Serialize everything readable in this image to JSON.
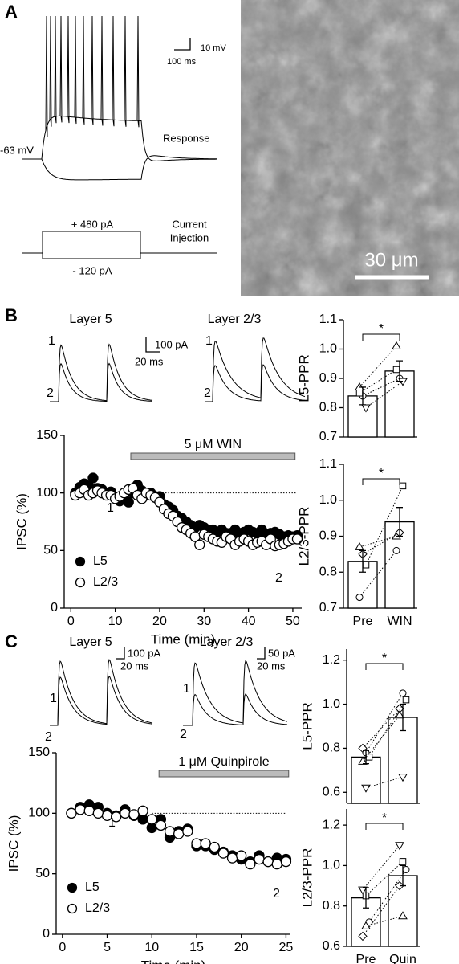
{
  "panels": [
    "A",
    "B",
    "C"
  ],
  "panel_a": {
    "scale_v": "10 mV",
    "scale_t": "100 ms",
    "rest": "-63 mV",
    "response": "Response",
    "step_up": "+ 480 pA",
    "step_down": "- 120 pA",
    "injection": [
      "Current",
      "Injection"
    ],
    "image_scale": "30 μm"
  },
  "panel_b": {
    "trace_titles": [
      "Layer 5",
      "Layer 2/3"
    ],
    "scale_i": "100 pA",
    "scale_t": "20 ms",
    "trace_labels": [
      "1",
      "2"
    ]
  },
  "panel_c": {
    "trace_titles": [
      "Layer 5",
      "Layer 2/3"
    ],
    "scale_i": [
      "100 pA",
      "50 pA"
    ],
    "scale_t": [
      "20 ms",
      "20 ms"
    ],
    "trace_labels": [
      "1",
      "2"
    ]
  },
  "chart_data": [
    {
      "type": "scatter",
      "ylabel": "IPSC (%)",
      "xlabel": "Time (min)",
      "xlim": [
        -1.5,
        52
      ],
      "xticks": [
        0,
        10,
        20,
        30,
        40,
        50
      ],
      "ylim": [
        0,
        150
      ],
      "yticks": [
        0,
        50,
        100,
        150
      ],
      "treatment": {
        "label": "5 μM WIN",
        "start": 13.5,
        "end": 50.5
      },
      "reference_line": {
        "value": 100,
        "start": 20,
        "end": 51
      },
      "annotations": [
        "1",
        "2"
      ],
      "x": [
        1,
        2,
        3,
        4,
        5,
        6,
        7,
        8,
        9,
        10,
        11,
        12,
        13,
        14,
        15,
        16,
        17,
        18,
        19,
        20,
        21,
        22,
        23,
        24,
        25,
        26,
        27,
        28,
        29,
        30,
        31,
        32,
        33,
        34,
        35,
        36,
        37,
        38,
        39,
        40,
        41,
        42,
        43,
        44,
        45,
        46,
        47,
        48,
        49,
        50,
        51
      ],
      "series": [
        {
          "name": "L5",
          "color": "#000000",
          "values": [
            100,
            105,
            108,
            106,
            113,
            104,
            103,
            100,
            101,
            96,
            93,
            95,
            92,
            100,
            107,
            102,
            98,
            100,
            97,
            97,
            90,
            88,
            85,
            80,
            78,
            75,
            72,
            70,
            72,
            70,
            68,
            68,
            66,
            68,
            65,
            65,
            68,
            65,
            66,
            68,
            66,
            65,
            68,
            64,
            65,
            66,
            64,
            62,
            63,
            62,
            63
          ]
        },
        {
          "name": "L2/3",
          "color": "#ffffff",
          "values": [
            98,
            100,
            103,
            98,
            100,
            102,
            100,
            98,
            98,
            95,
            97,
            100,
            103,
            104,
            98,
            95,
            100,
            98,
            96,
            92,
            86,
            82,
            80,
            75,
            70,
            68,
            65,
            62,
            55,
            64,
            62,
            60,
            58,
            57,
            62,
            60,
            55,
            58,
            60,
            58,
            55,
            57,
            58,
            55,
            60,
            54,
            55,
            56,
            58,
            60,
            60
          ]
        }
      ]
    },
    {
      "type": "bar",
      "ylabel": "L5-PPR",
      "values": [
        0.84,
        0.925
      ],
      "errors": [
        0.03,
        0.035
      ],
      "color": "#ffffff",
      "ylim": [
        0.7,
        1.1
      ],
      "yticks": [
        0.7,
        0.8,
        0.9,
        {
          "value": 1,
          "label": "1.0"
        },
        1.1
      ],
      "significance": "*",
      "pairs": [
        {
          "marker": "triangle-up",
          "values": [
            0.87,
            1.01
          ]
        },
        {
          "marker": "circle",
          "values": [
            0.84,
            0.9
          ]
        },
        {
          "marker": "triangle-down",
          "values": [
            0.8,
            0.89
          ]
        },
        {
          "marker": "square",
          "values": [
            0.85,
            0.93
          ]
        }
      ]
    },
    {
      "type": "bar",
      "ylabel": "L2/3-PPR",
      "categories": [
        "Pre",
        "WIN"
      ],
      "values": [
        0.83,
        0.94
      ],
      "errors": [
        0.03,
        0.04
      ],
      "color": "#ffffff",
      "ylim": [
        0.7,
        1.1
      ],
      "yticks": [
        0.7,
        0.8,
        0.9,
        {
          "value": 1,
          "label": "1.0"
        },
        1.1
      ],
      "significance": "*",
      "pairs": [
        {
          "marker": "triangle-up",
          "values": [
            0.87,
            0.9
          ]
        },
        {
          "marker": "diamond",
          "values": [
            0.85,
            0.91
          ]
        },
        {
          "marker": "square",
          "values": [
            0.82,
            1.04
          ]
        },
        {
          "marker": "circle",
          "values": [
            0.73,
            0.86
          ]
        }
      ]
    },
    {
      "type": "scatter",
      "ylabel": "IPSC (%)",
      "xlabel": "Time (min)",
      "xlim": [
        -0.7,
        25.5
      ],
      "xticks": [
        0,
        5,
        10,
        15,
        20,
        25
      ],
      "ylim": [
        0,
        150
      ],
      "yticks": [
        0,
        50,
        100,
        150
      ],
      "treatment": {
        "label": "1 μM Quinpirole",
        "start": 10.8,
        "end": 25.3
      },
      "reference_line": {
        "value": 100,
        "start": 10,
        "end": 25
      },
      "annotations": [
        "1",
        "2"
      ],
      "x": [
        1,
        2,
        3,
        4,
        5,
        6,
        7,
        8,
        9,
        10,
        11,
        12,
        13,
        14,
        15,
        16,
        17,
        18,
        19,
        20,
        21,
        22,
        23,
        24,
        25
      ],
      "series": [
        {
          "name": "L5",
          "color": "#000000",
          "values": [
            100,
            105,
            107,
            105,
            100,
            98,
            103,
            98,
            95,
            88,
            95,
            80,
            85,
            87,
            73,
            73,
            70,
            68,
            65,
            62,
            60,
            65,
            60,
            63,
            62
          ]
        },
        {
          "name": "L2/3",
          "color": "#ffffff",
          "values": [
            100,
            103,
            102,
            100,
            98,
            97,
            100,
            99,
            102,
            95,
            90,
            85,
            83,
            85,
            75,
            75,
            72,
            67,
            63,
            65,
            58,
            62,
            60,
            58,
            60
          ]
        }
      ]
    },
    {
      "type": "bar",
      "ylabel": "L5-PPR",
      "values": [
        0.76,
        0.94
      ],
      "errors": [
        0.03,
        0.06
      ],
      "color": "#ffffff",
      "ylim": [
        0.55,
        1.25
      ],
      "yticks": [
        0.6,
        0.8,
        {
          "value": 1,
          "label": "1.0"
        },
        1.2
      ],
      "significance": "*",
      "pairs": [
        {
          "marker": "diamond",
          "values": [
            0.8,
            0.98
          ]
        },
        {
          "marker": "circle",
          "values": [
            0.78,
            1.05
          ]
        },
        {
          "marker": "square",
          "values": [
            0.76,
            1.02
          ]
        },
        {
          "marker": "triangle-up",
          "values": [
            0.74,
            0.95
          ]
        },
        {
          "marker": "triangle-down",
          "values": [
            0.62,
            0.67
          ]
        }
      ]
    },
    {
      "type": "bar",
      "ylabel": "L2/3-PPR",
      "categories": [
        "Pre",
        "Quin"
      ],
      "values": [
        0.84,
        0.95
      ],
      "errors": [
        0.05,
        0.05
      ],
      "color": "#ffffff",
      "ylim": [
        0.6,
        1.28
      ],
      "yticks": [
        0.6,
        0.8,
        {
          "value": 1,
          "label": "1.0"
        },
        1.2
      ],
      "significance": "*",
      "pairs": [
        {
          "marker": "triangle-down",
          "values": [
            0.88,
            1.1
          ]
        },
        {
          "marker": "square",
          "values": [
            0.85,
            1.02
          ]
        },
        {
          "marker": "circle",
          "values": [
            0.72,
            0.98
          ]
        },
        {
          "marker": "diamond",
          "values": [
            0.65,
            0.9
          ]
        },
        {
          "marker": "triangle-up",
          "values": [
            0.7,
            0.75
          ]
        }
      ]
    }
  ]
}
